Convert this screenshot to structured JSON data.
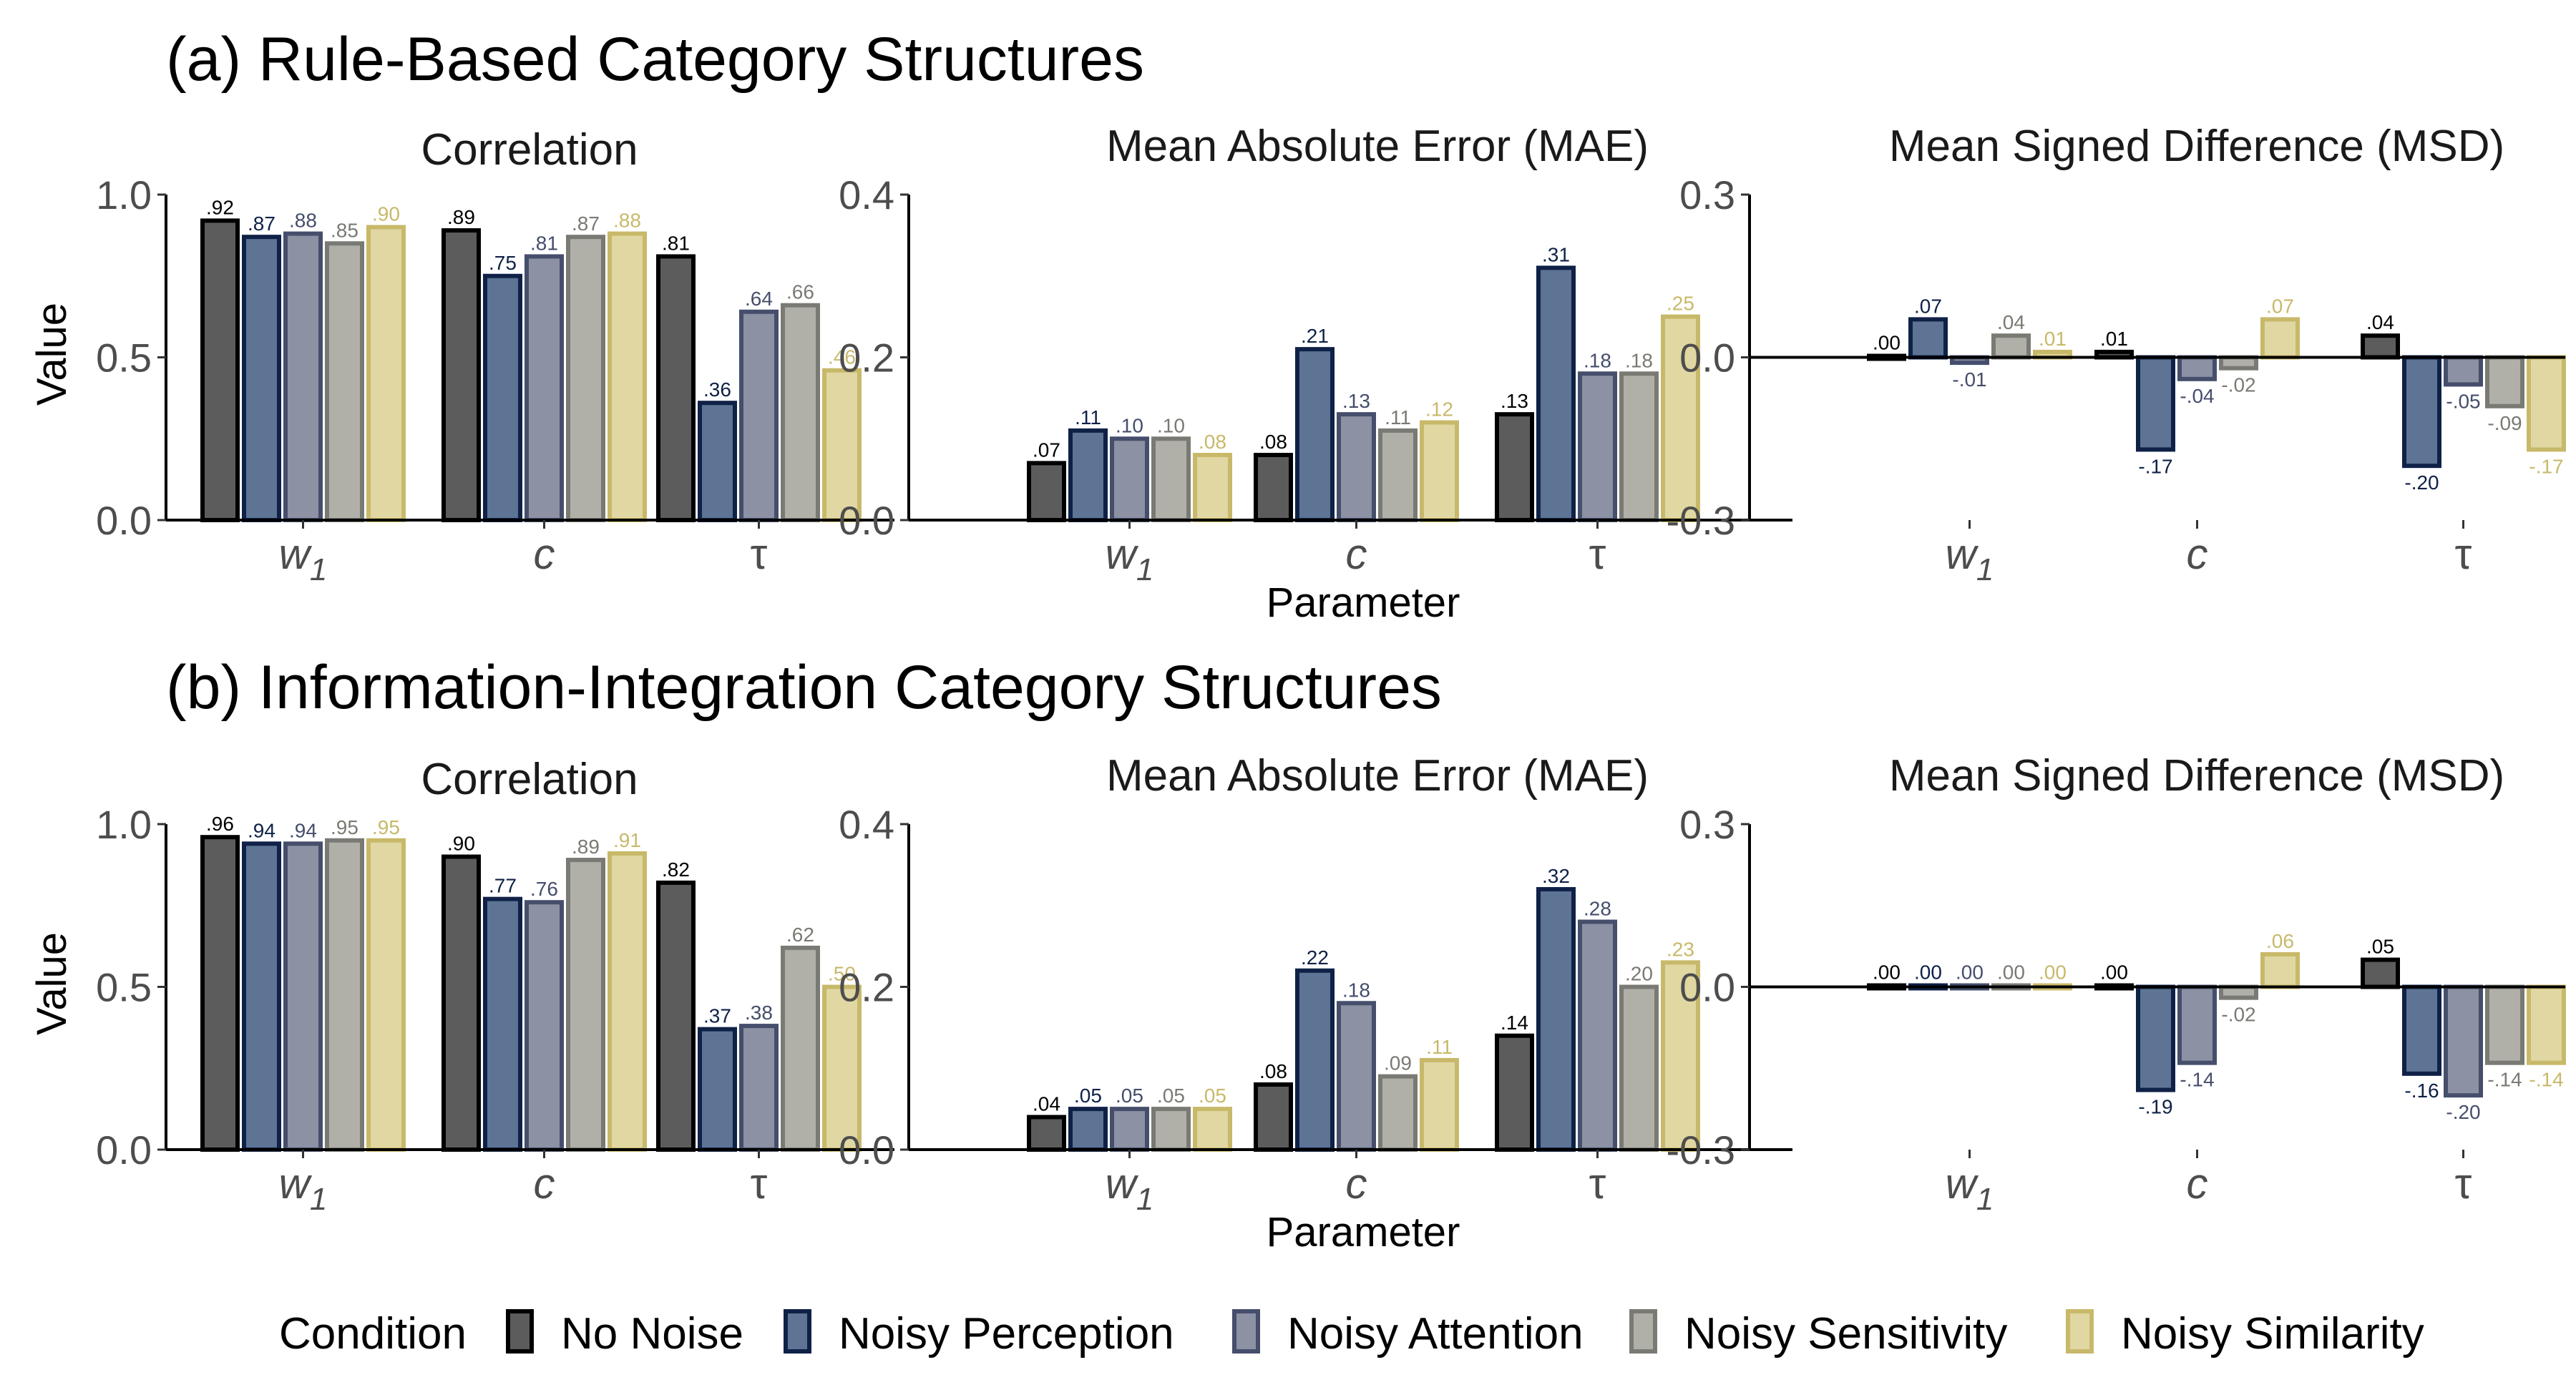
{
  "sections": [
    {
      "title": "(a) Rule-Based Category Structures",
      "x_axis_label": "Parameter",
      "panels": [
        {
          "title": "Correlation",
          "y_axis_label": "Value",
          "ylim": [
            0,
            1
          ],
          "y_ticks": [
            0,
            0.5,
            1
          ],
          "y_tick_labels": [
            "0.0",
            "0.5",
            "1.0"
          ],
          "categories": [
            "w1",
            "c",
            "τ"
          ],
          "values": [
            [
              0.92,
              0.87,
              0.88,
              0.85,
              0.9
            ],
            [
              0.89,
              0.75,
              0.81,
              0.87,
              0.88
            ],
            [
              0.81,
              0.36,
              0.64,
              0.66,
              0.46
            ]
          ],
          "labels": [
            [
              ".92",
              ".87",
              ".88",
              ".85",
              ".90"
            ],
            [
              ".89",
              ".75",
              ".81",
              ".87",
              ".88"
            ],
            [
              ".81",
              ".36",
              ".64",
              ".66",
              ".46"
            ]
          ]
        },
        {
          "title": "Mean Absolute Error (MAE)",
          "y_axis_label": "",
          "ylim": [
            0,
            0.4
          ],
          "y_ticks": [
            0,
            0.2,
            0.4
          ],
          "y_tick_labels": [
            "0.0",
            "0.2",
            "0.4"
          ],
          "categories": [
            "w1",
            "c",
            "τ"
          ],
          "values": [
            [
              0.07,
              0.11,
              0.1,
              0.1,
              0.08
            ],
            [
              0.08,
              0.21,
              0.13,
              0.11,
              0.12
            ],
            [
              0.13,
              0.31,
              0.18,
              0.18,
              0.25
            ]
          ],
          "labels": [
            [
              ".07",
              ".11",
              ".10",
              ".10",
              ".08"
            ],
            [
              ".08",
              ".21",
              ".13",
              ".11",
              ".12"
            ],
            [
              ".13",
              ".31",
              ".18",
              ".18",
              ".25"
            ]
          ]
        },
        {
          "title": "Mean Signed Difference (MSD)",
          "y_axis_label": "",
          "ylim": [
            -0.3,
            0.3
          ],
          "y_ticks": [
            -0.3,
            0,
            0.3
          ],
          "y_tick_labels": [
            "-0.3",
            "0.0",
            "0.3"
          ],
          "categories": [
            "w1",
            "c",
            "τ"
          ],
          "values": [
            [
              0.0,
              0.07,
              -0.01,
              0.04,
              0.01
            ],
            [
              0.01,
              -0.17,
              -0.04,
              -0.02,
              0.07
            ],
            [
              0.04,
              -0.2,
              -0.05,
              -0.09,
              -0.17
            ]
          ],
          "labels": [
            [
              ".00",
              ".07",
              "-.01",
              ".04",
              ".01"
            ],
            [
              ".01",
              "-.17",
              "-.04",
              "-.02",
              ".07"
            ],
            [
              ".04",
              "-.20",
              "-.05",
              "-.09",
              "-.17"
            ]
          ]
        }
      ]
    },
    {
      "title": "(b) Information-Integration Category Structures",
      "x_axis_label": "Parameter",
      "panels": [
        {
          "title": "Correlation",
          "y_axis_label": "Value",
          "ylim": [
            0,
            1
          ],
          "y_ticks": [
            0,
            0.5,
            1
          ],
          "y_tick_labels": [
            "0.0",
            "0.5",
            "1.0"
          ],
          "categories": [
            "w1",
            "c",
            "τ"
          ],
          "values": [
            [
              0.96,
              0.94,
              0.94,
              0.95,
              0.95
            ],
            [
              0.9,
              0.77,
              0.76,
              0.89,
              0.91
            ],
            [
              0.82,
              0.37,
              0.38,
              0.62,
              0.5
            ]
          ],
          "labels": [
            [
              ".96",
              ".94",
              ".94",
              ".95",
              ".95"
            ],
            [
              ".90",
              ".77",
              ".76",
              ".89",
              ".91"
            ],
            [
              ".82",
              ".37",
              ".38",
              ".62",
              ".50"
            ]
          ]
        },
        {
          "title": "Mean Absolute Error (MAE)",
          "y_axis_label": "",
          "ylim": [
            0,
            0.4
          ],
          "y_ticks": [
            0,
            0.2,
            0.4
          ],
          "y_tick_labels": [
            "0.0",
            "0.2",
            "0.4"
          ],
          "categories": [
            "w1",
            "c",
            "τ"
          ],
          "values": [
            [
              0.04,
              0.05,
              0.05,
              0.05,
              0.05
            ],
            [
              0.08,
              0.22,
              0.18,
              0.09,
              0.11
            ],
            [
              0.14,
              0.32,
              0.28,
              0.2,
              0.23
            ]
          ],
          "labels": [
            [
              ".04",
              ".05",
              ".05",
              ".05",
              ".05"
            ],
            [
              ".08",
              ".22",
              ".18",
              ".09",
              ".11"
            ],
            [
              ".14",
              ".32",
              ".28",
              ".20",
              ".23"
            ]
          ]
        },
        {
          "title": "Mean Signed Difference (MSD)",
          "y_axis_label": "",
          "ylim": [
            -0.3,
            0.3
          ],
          "y_ticks": [
            -0.3,
            0,
            0.3
          ],
          "y_tick_labels": [
            "-0.3",
            "0.0",
            "0.3"
          ],
          "categories": [
            "w1",
            "c",
            "τ"
          ],
          "values": [
            [
              0.0,
              0.0,
              0.0,
              0.0,
              0.0
            ],
            [
              0.0,
              -0.19,
              -0.14,
              -0.02,
              0.06
            ],
            [
              0.05,
              -0.16,
              -0.2,
              -0.14,
              -0.14
            ]
          ],
          "labels": [
            [
              ".00",
              ".00",
              ".00",
              ".00",
              ".00"
            ],
            [
              ".00",
              "-.19",
              "-.14",
              "-.02",
              ".06"
            ],
            [
              ".05",
              "-.16",
              "-.20",
              "-.14",
              "-.14"
            ]
          ]
        }
      ]
    }
  ],
  "legend": {
    "title": "Condition",
    "position": "bottom",
    "items": [
      {
        "name": "No Noise",
        "fill": "#5c5c5c",
        "stroke": "#000000",
        "label_color": "#000000"
      },
      {
        "name": "Noisy Perception",
        "fill": "#5d7494",
        "stroke": "#0f2147",
        "label_color": "#0f2147"
      },
      {
        "name": "Noisy Attention",
        "fill": "#8c91a3",
        "stroke": "#454e6b",
        "label_color": "#454e6b"
      },
      {
        "name": "Noisy Sensitivity",
        "fill": "#b0b0a9",
        "stroke": "#7a7a74",
        "label_color": "#7a7a74"
      },
      {
        "name": "Noisy Similarity",
        "fill": "#e0d7a3",
        "stroke": "#c8b96a",
        "label_color": "#c8b96a"
      }
    ]
  },
  "chart_data": [
    {
      "type": "bar",
      "title": "Correlation",
      "section": "(a) Rule-Based Category Structures",
      "categories": [
        "w1",
        "c",
        "τ"
      ],
      "ylim": [
        0,
        1
      ],
      "ylabel": "Value",
      "series": [
        {
          "name": "No Noise",
          "values": [
            0.92,
            0.89,
            0.81
          ]
        },
        {
          "name": "Noisy Perception",
          "values": [
            0.87,
            0.75,
            0.36
          ]
        },
        {
          "name": "Noisy Attention",
          "values": [
            0.88,
            0.81,
            0.64
          ]
        },
        {
          "name": "Noisy Sensitivity",
          "values": [
            0.85,
            0.87,
            0.66
          ]
        },
        {
          "name": "Noisy Similarity",
          "values": [
            0.9,
            0.88,
            0.46
          ]
        }
      ]
    },
    {
      "type": "bar",
      "title": "Mean Absolute Error (MAE)",
      "section": "(a) Rule-Based Category Structures",
      "categories": [
        "w1",
        "c",
        "τ"
      ],
      "ylim": [
        0,
        0.4
      ],
      "xlabel": "Parameter",
      "series": [
        {
          "name": "No Noise",
          "values": [
            0.07,
            0.08,
            0.13
          ]
        },
        {
          "name": "Noisy Perception",
          "values": [
            0.11,
            0.21,
            0.31
          ]
        },
        {
          "name": "Noisy Attention",
          "values": [
            0.1,
            0.13,
            0.18
          ]
        },
        {
          "name": "Noisy Sensitivity",
          "values": [
            0.1,
            0.11,
            0.18
          ]
        },
        {
          "name": "Noisy Similarity",
          "values": [
            0.08,
            0.12,
            0.25
          ]
        }
      ]
    },
    {
      "type": "bar",
      "title": "Mean Signed Difference (MSD)",
      "section": "(a) Rule-Based Category Structures",
      "categories": [
        "w1",
        "c",
        "τ"
      ],
      "ylim": [
        -0.3,
        0.3
      ],
      "series": [
        {
          "name": "No Noise",
          "values": [
            0.0,
            0.01,
            0.04
          ]
        },
        {
          "name": "Noisy Perception",
          "values": [
            0.07,
            -0.17,
            -0.2
          ]
        },
        {
          "name": "Noisy Attention",
          "values": [
            -0.01,
            -0.04,
            -0.05
          ]
        },
        {
          "name": "Noisy Sensitivity",
          "values": [
            0.04,
            -0.02,
            -0.09
          ]
        },
        {
          "name": "Noisy Similarity",
          "values": [
            0.01,
            0.07,
            -0.17
          ]
        }
      ]
    },
    {
      "type": "bar",
      "title": "Correlation",
      "section": "(b) Information-Integration Category Structures",
      "categories": [
        "w1",
        "c",
        "τ"
      ],
      "ylim": [
        0,
        1
      ],
      "ylabel": "Value",
      "series": [
        {
          "name": "No Noise",
          "values": [
            0.96,
            0.9,
            0.82
          ]
        },
        {
          "name": "Noisy Perception",
          "values": [
            0.94,
            0.77,
            0.37
          ]
        },
        {
          "name": "Noisy Attention",
          "values": [
            0.94,
            0.76,
            0.38
          ]
        },
        {
          "name": "Noisy Sensitivity",
          "values": [
            0.95,
            0.89,
            0.62
          ]
        },
        {
          "name": "Noisy Similarity",
          "values": [
            0.95,
            0.91,
            0.5
          ]
        }
      ]
    },
    {
      "type": "bar",
      "title": "Mean Absolute Error (MAE)",
      "section": "(b) Information-Integration Category Structures",
      "categories": [
        "w1",
        "c",
        "τ"
      ],
      "ylim": [
        0,
        0.4
      ],
      "xlabel": "Parameter",
      "series": [
        {
          "name": "No Noise",
          "values": [
            0.04,
            0.08,
            0.14
          ]
        },
        {
          "name": "Noisy Perception",
          "values": [
            0.05,
            0.22,
            0.32
          ]
        },
        {
          "name": "Noisy Attention",
          "values": [
            0.05,
            0.18,
            0.28
          ]
        },
        {
          "name": "Noisy Sensitivity",
          "values": [
            0.05,
            0.09,
            0.2
          ]
        },
        {
          "name": "Noisy Similarity",
          "values": [
            0.05,
            0.11,
            0.23
          ]
        }
      ]
    },
    {
      "type": "bar",
      "title": "Mean Signed Difference (MSD)",
      "section": "(b) Information-Integration Category Structures",
      "categories": [
        "w1",
        "c",
        "τ"
      ],
      "ylim": [
        -0.3,
        0.3
      ],
      "series": [
        {
          "name": "No Noise",
          "values": [
            0.0,
            0.0,
            0.05
          ]
        },
        {
          "name": "Noisy Perception",
          "values": [
            0.0,
            -0.19,
            -0.16
          ]
        },
        {
          "name": "Noisy Attention",
          "values": [
            0.0,
            -0.14,
            -0.2
          ]
        },
        {
          "name": "Noisy Sensitivity",
          "values": [
            0.0,
            -0.02,
            -0.14
          ]
        },
        {
          "name": "Noisy Similarity",
          "values": [
            0.0,
            0.06,
            -0.14
          ]
        }
      ]
    }
  ]
}
